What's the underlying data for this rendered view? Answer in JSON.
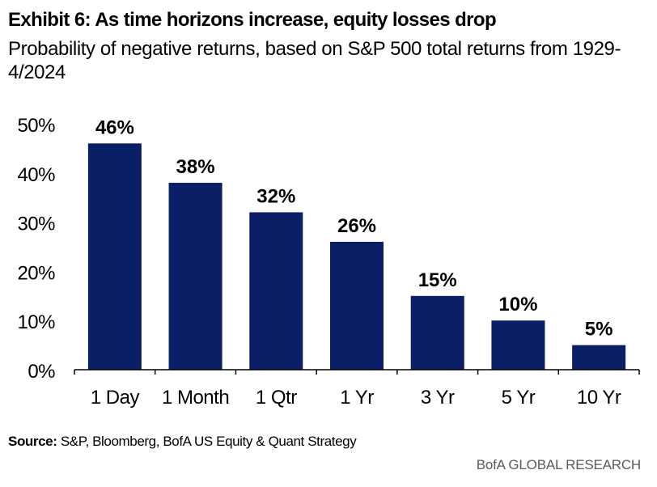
{
  "header": {
    "title": "Exhibit 6: As time horizons increase, equity losses drop",
    "subtitle": "Probability of negative returns, based on S&P 500 total returns from 1929-4/2024"
  },
  "footer": {
    "source_label": "Source:",
    "source_text": " S&P, Bloomberg, BofA US Equity & Quant Strategy",
    "brand": "BofA GLOBAL RESEARCH"
  },
  "colors": {
    "bar": "#0b1f66",
    "axis": "#000000"
  },
  "chart_data": {
    "type": "bar",
    "title": "Exhibit 6: As time horizons increase, equity losses drop",
    "subtitle": "Probability of negative returns, based on S&P 500 total returns from 1929-4/2024",
    "categories": [
      "1 Day",
      "1 Month",
      "1 Qtr",
      "1 Yr",
      "3 Yr",
      "5 Yr",
      "10 Yr"
    ],
    "values": [
      46,
      38,
      32,
      26,
      15,
      10,
      5
    ],
    "data_labels": [
      "46%",
      "38%",
      "32%",
      "26%",
      "15%",
      "10%",
      "5%"
    ],
    "xlabel": "",
    "ylabel": "",
    "ylim": [
      0,
      50
    ],
    "yticks": [
      0,
      10,
      20,
      30,
      40,
      50
    ],
    "ytick_labels": [
      "0%",
      "10%",
      "20%",
      "30%",
      "40%",
      "50%"
    ],
    "grid": false,
    "legend": "none"
  }
}
